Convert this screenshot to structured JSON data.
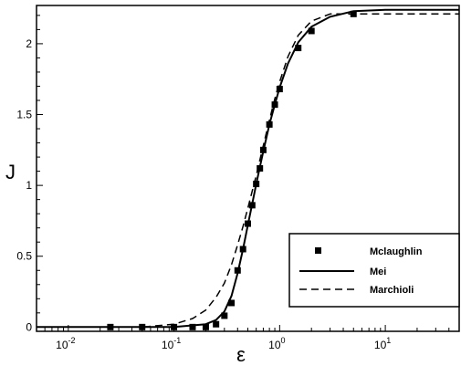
{
  "chart_data": {
    "type": "line",
    "xlabel": "ε",
    "ylabel": "J",
    "x_scale": "log",
    "xlim": [
      0.005,
      50
    ],
    "ylim": [
      -0.03,
      2.27
    ],
    "grid": false,
    "legend_placement": "bottom-right",
    "x_ticks": [
      {
        "value": 0.01,
        "base": "10",
        "exp": "-2"
      },
      {
        "value": 0.1,
        "base": "10",
        "exp": "-1"
      },
      {
        "value": 1,
        "base": "10",
        "exp": "0"
      },
      {
        "value": 10,
        "base": "10",
        "exp": "1"
      }
    ],
    "y_ticks": [
      {
        "value": 0,
        "label": "0"
      },
      {
        "value": 0.5,
        "label": "0.5"
      },
      {
        "value": 1,
        "label": "1"
      },
      {
        "value": 1.5,
        "label": "1.5"
      },
      {
        "value": 2,
        "label": "2"
      }
    ],
    "series": [
      {
        "name": "Mclaughlin",
        "style": "markers",
        "color": "#000000",
        "x": [
          0.025,
          0.05,
          0.1,
          0.15,
          0.2,
          0.25,
          0.3,
          0.35,
          0.4,
          0.45,
          0.5,
          0.55,
          0.6,
          0.65,
          0.7,
          0.8,
          0.9,
          1.0,
          1.5,
          2.0,
          5.0
        ],
        "y": [
          0.0,
          0.0,
          0.0,
          0.0,
          0.0,
          0.02,
          0.08,
          0.17,
          0.4,
          0.55,
          0.73,
          0.86,
          1.01,
          1.12,
          1.25,
          1.43,
          1.57,
          1.68,
          1.97,
          2.09,
          2.21
        ]
      },
      {
        "name": "Mei",
        "style": "solid",
        "color": "#000000",
        "x": [
          0.005,
          0.1,
          0.2,
          0.25,
          0.3,
          0.35,
          0.4,
          0.45,
          0.5,
          0.55,
          0.6,
          0.65,
          0.7,
          0.8,
          0.9,
          1.0,
          1.2,
          1.5,
          2.0,
          3.0,
          5.0,
          10.0,
          50.0
        ],
        "y": [
          0.0,
          0.0,
          0.02,
          0.05,
          0.11,
          0.22,
          0.38,
          0.55,
          0.72,
          0.87,
          1.01,
          1.13,
          1.24,
          1.43,
          1.57,
          1.69,
          1.86,
          2.01,
          2.12,
          2.19,
          2.23,
          2.24,
          2.24
        ]
      },
      {
        "name": "Marchioli",
        "style": "dashed",
        "color": "#000000",
        "x": [
          0.005,
          0.05,
          0.1,
          0.15,
          0.2,
          0.25,
          0.3,
          0.35,
          0.4,
          0.45,
          0.5,
          0.55,
          0.6,
          0.65,
          0.7,
          0.8,
          0.9,
          1.0,
          1.2,
          1.5,
          2.0,
          3.0,
          5.0,
          10.0,
          50.0
        ],
        "y": [
          0.0,
          0.0,
          0.02,
          0.06,
          0.12,
          0.21,
          0.31,
          0.44,
          0.58,
          0.71,
          0.84,
          0.96,
          1.07,
          1.18,
          1.28,
          1.46,
          1.61,
          1.73,
          1.91,
          2.06,
          2.16,
          2.21,
          2.21,
          2.21,
          2.21
        ]
      }
    ]
  }
}
